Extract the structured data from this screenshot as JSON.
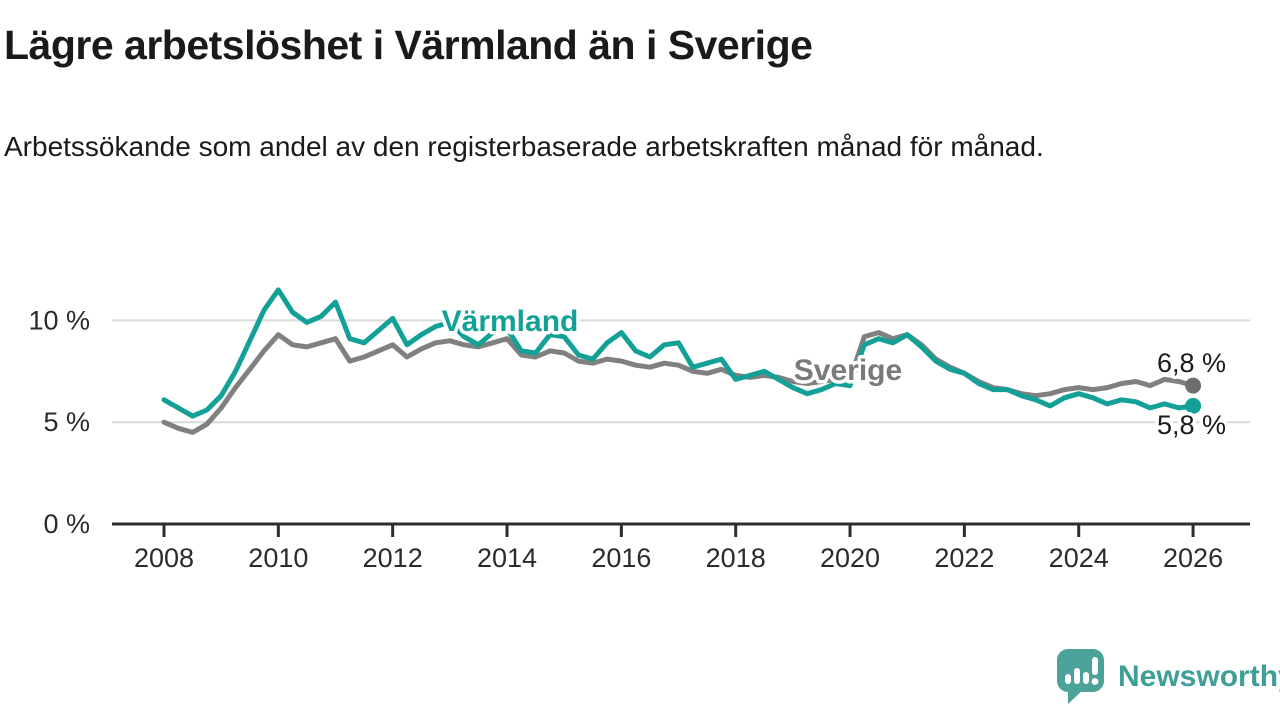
{
  "chart_data": {
    "type": "line",
    "title": "Lägre arbetslöshet i Värmland än i Sverige",
    "subtitle": "Arbetssökande som andel av den registerbaserade arbetskraften månad för månad.",
    "xlabel": "",
    "ylabel": "",
    "x_start": 2008,
    "x_step": 0.25,
    "x_end": 2026,
    "ylim": [
      0,
      12
    ],
    "grid": "horizontal-gridlines-at-5-and-10",
    "legend_position": "inline-labels-on-lines",
    "y_ticks": [
      {
        "value": 0,
        "label": "0 %"
      },
      {
        "value": 5,
        "label": "5 %"
      },
      {
        "value": 10,
        "label": "10 %"
      }
    ],
    "x_ticks": [
      {
        "value": 2008,
        "label": "2008"
      },
      {
        "value": 2010,
        "label": "2010"
      },
      {
        "value": 2012,
        "label": "2012"
      },
      {
        "value": 2014,
        "label": "2014"
      },
      {
        "value": 2016,
        "label": "2016"
      },
      {
        "value": 2018,
        "label": "2018"
      },
      {
        "value": 2020,
        "label": "2020"
      },
      {
        "value": 2022,
        "label": "2022"
      },
      {
        "value": 2024,
        "label": "2024"
      },
      {
        "value": 2026,
        "label": "2026"
      }
    ],
    "series": [
      {
        "name": "Sverige",
        "key": "sverige",
        "color": "#808080",
        "label_color": "#7a7a7a",
        "dot_color": "#6e6e6e",
        "end_label": "6,8 %",
        "end_value": 6.8,
        "values": [
          5.0,
          4.7,
          4.5,
          4.9,
          5.7,
          6.7,
          7.6,
          8.5,
          9.3,
          8.8,
          8.7,
          8.9,
          9.1,
          8.0,
          8.2,
          8.5,
          8.8,
          8.2,
          8.6,
          8.9,
          9.0,
          8.8,
          8.7,
          8.9,
          9.1,
          8.3,
          8.2,
          8.5,
          8.4,
          8.0,
          7.9,
          8.1,
          8.0,
          7.8,
          7.7,
          7.9,
          7.8,
          7.5,
          7.4,
          7.6,
          7.3,
          7.2,
          7.3,
          7.2,
          7.0,
          6.9,
          7.0,
          7.1,
          7.1,
          9.2,
          9.4,
          9.1,
          9.3,
          8.8,
          8.1,
          7.7,
          7.4,
          7.0,
          6.7,
          6.6,
          6.4,
          6.3,
          6.4,
          6.6,
          6.7,
          6.6,
          6.7,
          6.9,
          7.0,
          6.8,
          7.1,
          7.0,
          6.8
        ]
      },
      {
        "name": "Värmland",
        "key": "varmland",
        "color": "#13a096",
        "label_color": "#13a096",
        "dot_color": "#13a096",
        "end_label": "5,8 %",
        "end_value": 5.8,
        "values": [
          6.1,
          5.7,
          5.3,
          5.6,
          6.3,
          7.5,
          9.0,
          10.5,
          11.5,
          10.4,
          9.9,
          10.2,
          10.9,
          9.1,
          8.9,
          9.5,
          10.1,
          8.8,
          9.3,
          9.7,
          9.9,
          9.2,
          8.8,
          9.4,
          9.6,
          8.5,
          8.4,
          9.3,
          9.2,
          8.3,
          8.1,
          8.9,
          9.4,
          8.5,
          8.2,
          8.8,
          8.9,
          7.7,
          7.9,
          8.1,
          7.1,
          7.3,
          7.5,
          7.1,
          6.7,
          6.4,
          6.6,
          6.9,
          6.8,
          8.8,
          9.1,
          8.9,
          9.3,
          8.7,
          8.0,
          7.6,
          7.4,
          6.9,
          6.6,
          6.6,
          6.3,
          6.1,
          5.8,
          6.2,
          6.4,
          6.2,
          5.9,
          6.1,
          6.0,
          5.7,
          5.9,
          5.7,
          5.8
        ]
      }
    ],
    "colors": {
      "axis": "#2d2d2d",
      "gridline": "#dadada",
      "tick_text": "#2b2b2b",
      "text": "#1a1a1a"
    }
  },
  "branding": {
    "logo_text": "Newsworthy",
    "icon_color": "#4aa298",
    "text_color": "#3f9e96",
    "icon_glyph": "speech-bubble-with-bar-chart-and-exclamation"
  }
}
